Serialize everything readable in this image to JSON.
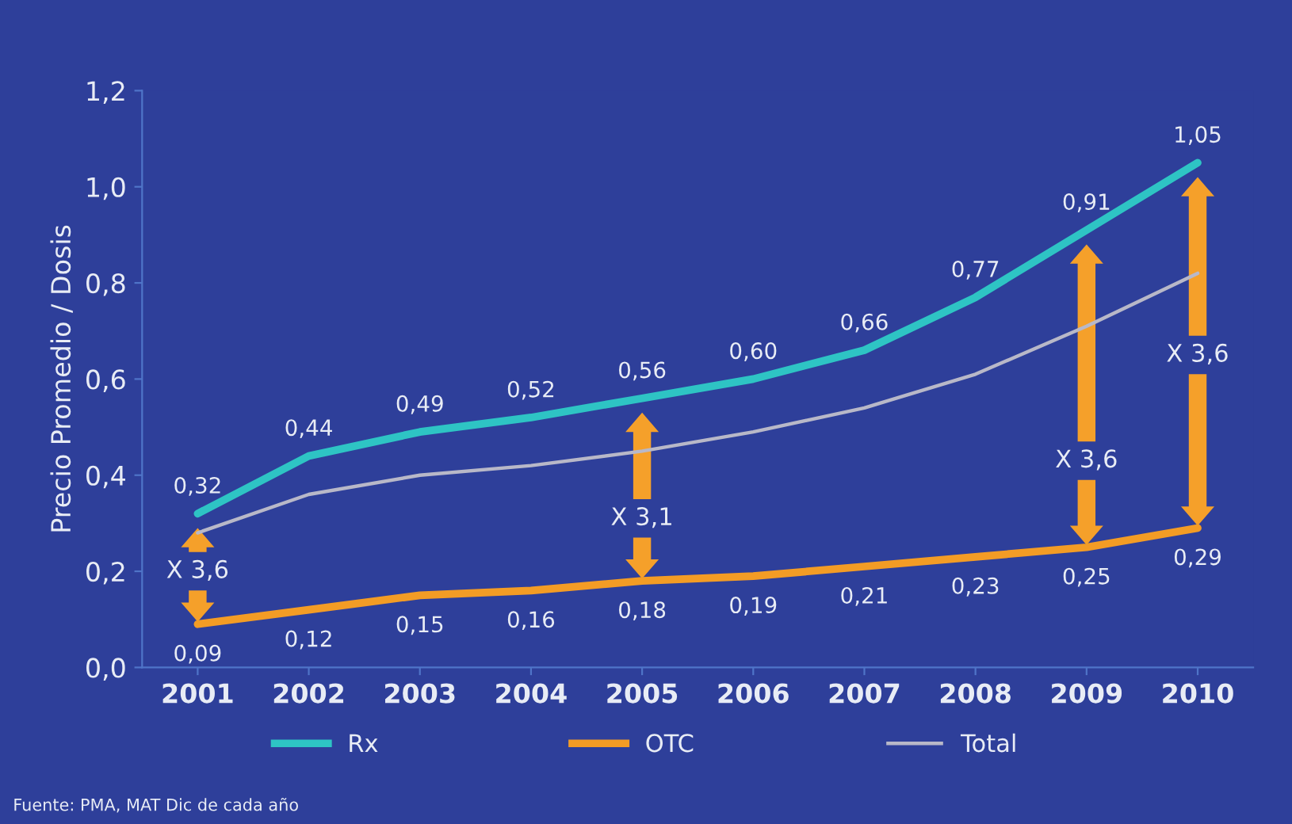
{
  "chart_data": {
    "type": "line",
    "ylabel": "Precio Promedio / Dosis",
    "categories": [
      "2001",
      "2002",
      "2003",
      "2004",
      "2005",
      "2006",
      "2007",
      "2008",
      "2009",
      "2010"
    ],
    "series": [
      {
        "name": "Rx",
        "color": "#2ec4c4",
        "values": [
          0.32,
          0.44,
          0.49,
          0.52,
          0.56,
          0.6,
          0.66,
          0.77,
          0.91,
          1.05
        ],
        "value_labels": [
          "0,32",
          "0,44",
          "0,49",
          "0,52",
          "0,56",
          "0,60",
          "0,66",
          "0,77",
          "0,91",
          "1,05"
        ]
      },
      {
        "name": "OTC",
        "color": "#f39c25",
        "values": [
          0.09,
          0.12,
          0.15,
          0.16,
          0.18,
          0.19,
          0.21,
          0.23,
          0.25,
          0.29
        ],
        "value_labels": [
          "0,09",
          "0,12",
          "0,15",
          "0,16",
          "0,18",
          "0,19",
          "0,21",
          "0,23",
          "0,25",
          "0,29"
        ]
      },
      {
        "name": "Total",
        "color": "#b8b8c8",
        "values": [
          0.28,
          0.36,
          0.4,
          0.42,
          0.45,
          0.49,
          0.54,
          0.61,
          0.71,
          0.82
        ]
      }
    ],
    "ylim": [
      0,
      1.2
    ],
    "yticks": [
      {
        "value": 0,
        "label": "0,0"
      },
      {
        "value": 0.2,
        "label": "0,2"
      },
      {
        "value": 0.4,
        "label": "0,4"
      },
      {
        "value": 0.6,
        "label": "0,6"
      },
      {
        "value": 0.8,
        "label": "0,8"
      },
      {
        "value": 1.0,
        "label": "1,0"
      },
      {
        "value": 1.2,
        "label": "1,2"
      }
    ],
    "grid": false,
    "legend": "bottom",
    "marker": "none",
    "line_style": "solid",
    "annotations": [
      "X 3,6",
      "X 3,1",
      "X 3,6",
      "X 3,6",
      "Fuente: PMA, MAT Dic de cada año"
    ]
  }
}
